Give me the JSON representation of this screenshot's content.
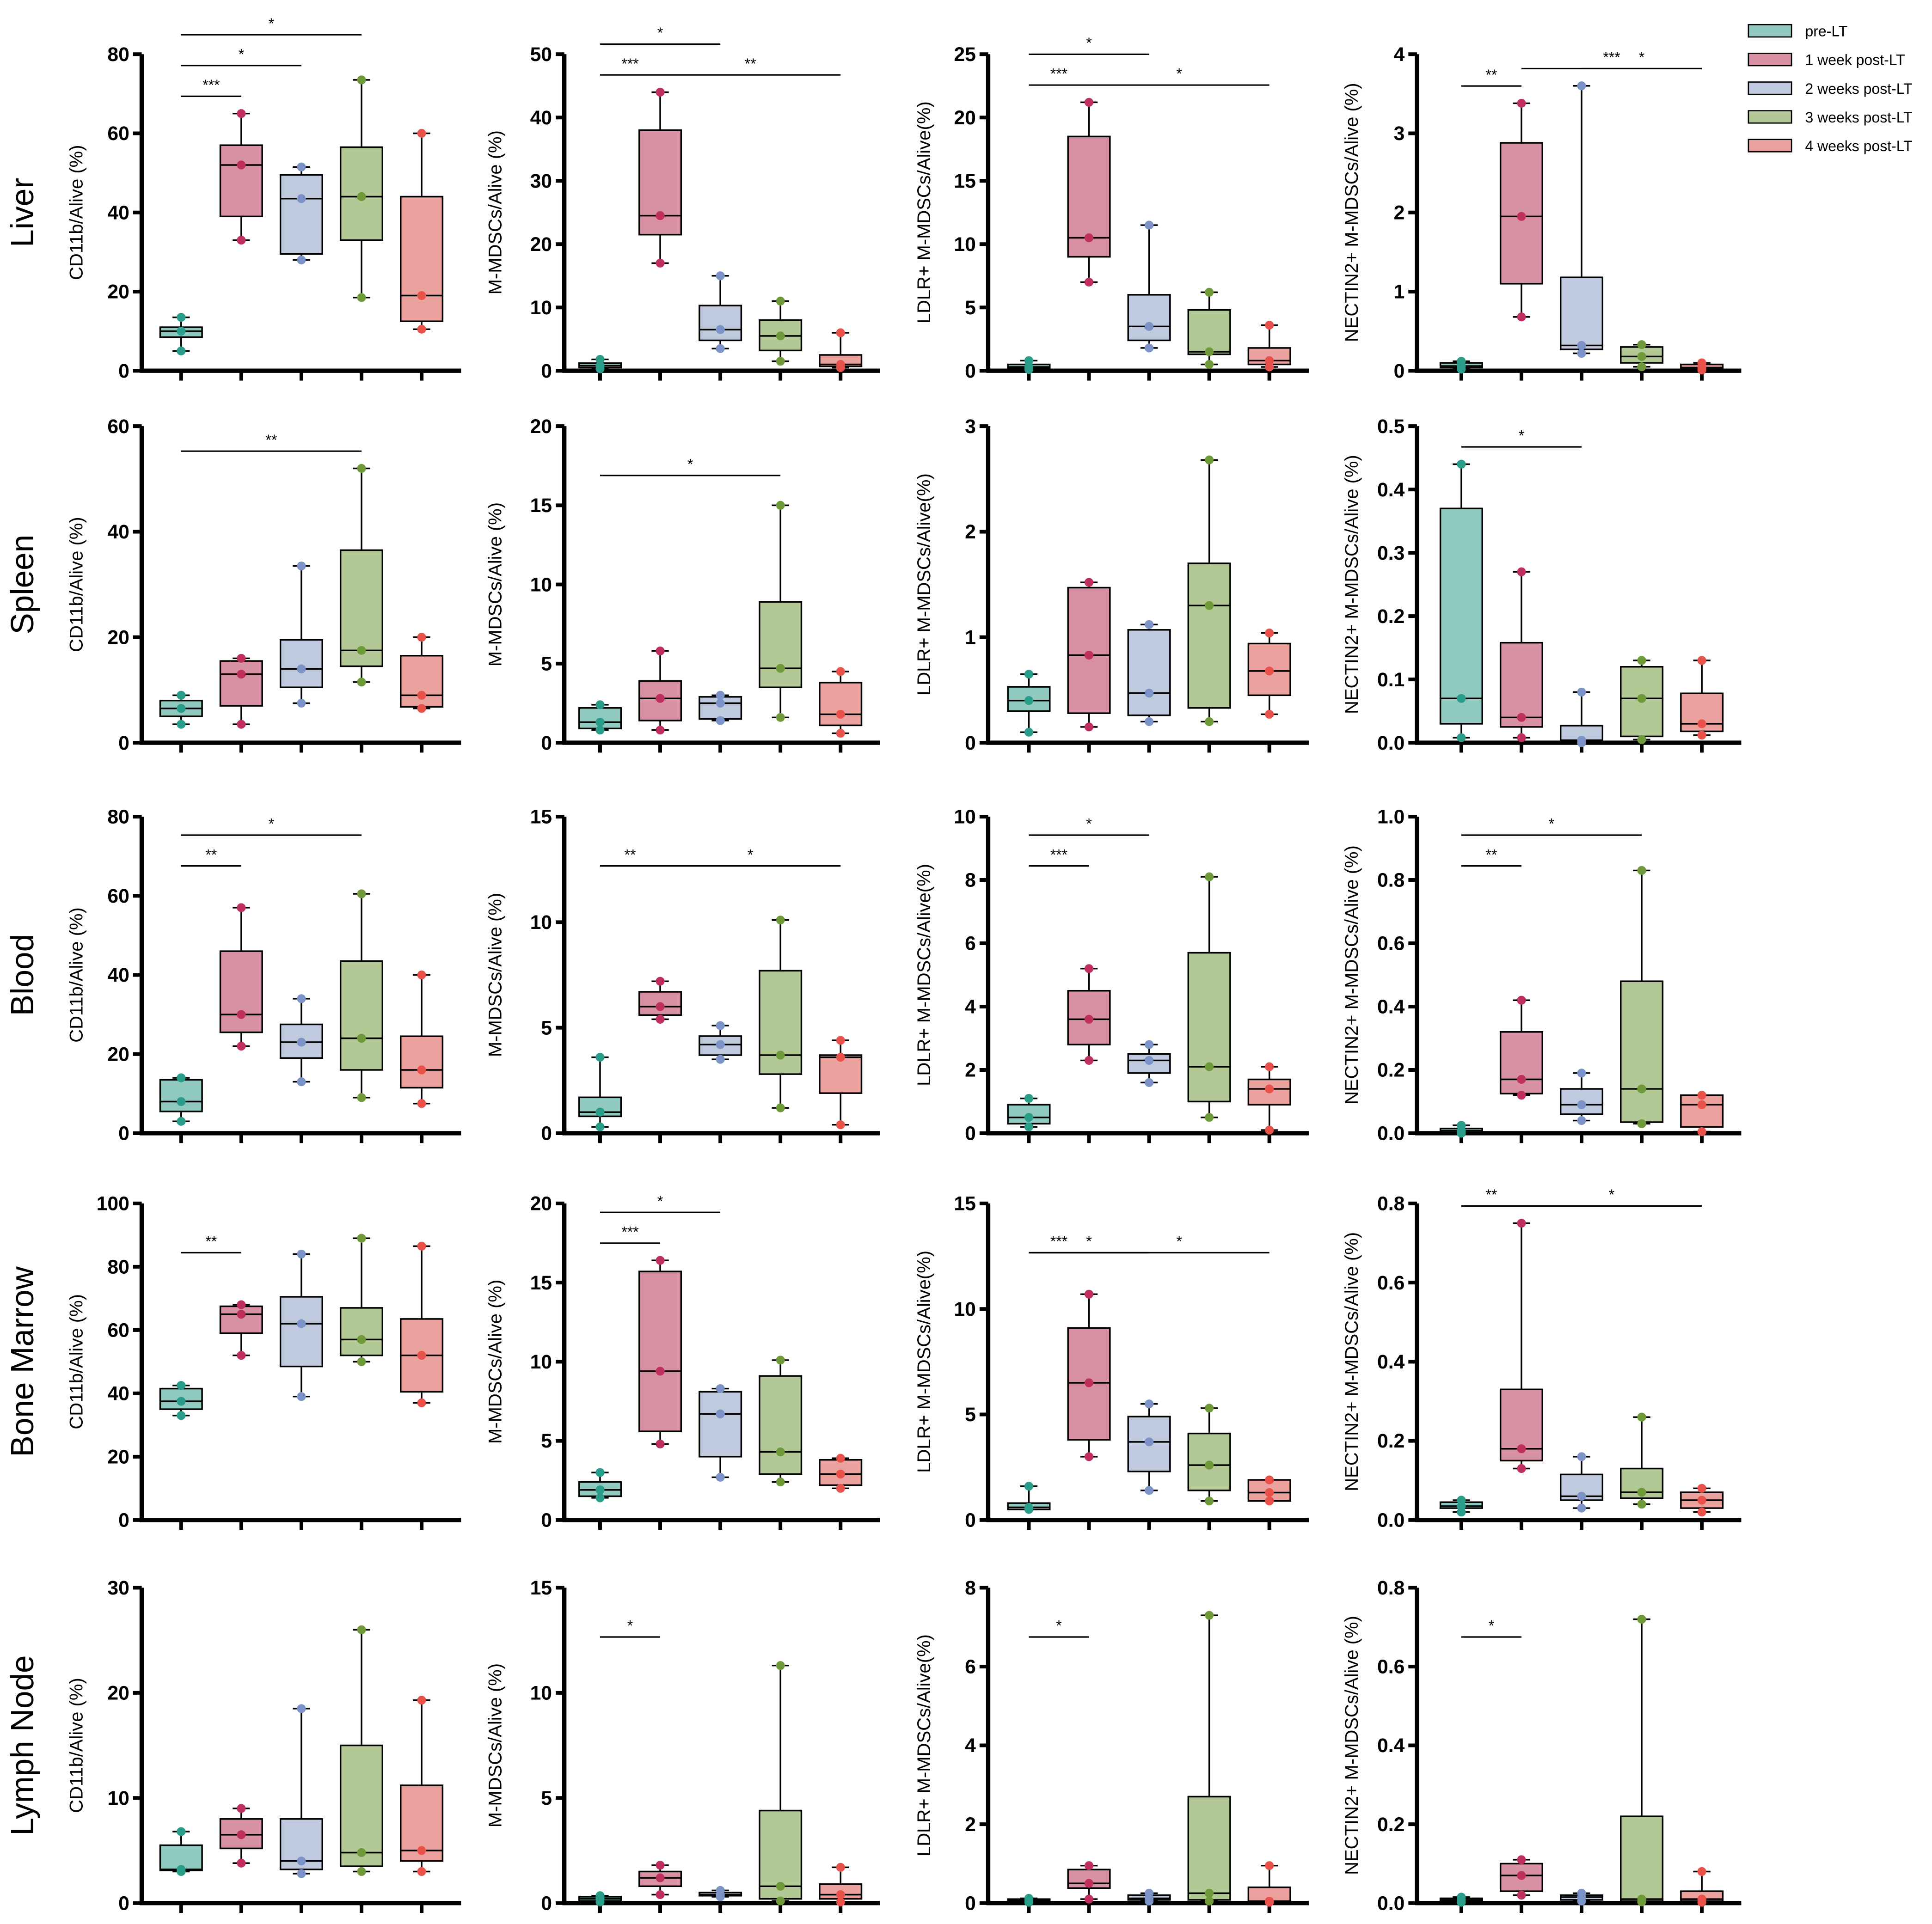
{
  "legend": {
    "groups": [
      "pre-LT",
      "1 week post-LT",
      "2 weeks post-LT",
      "3 weeks post-LT",
      "4 weeks post-LT"
    ],
    "fill_colors": [
      "#8fc9bf",
      "#d890a3",
      "#c0cade",
      "#b2c996",
      "#eba29e"
    ],
    "point_colors": [
      "#2a9d8a",
      "#c0305f",
      "#7b93c6",
      "#6e9a3a",
      "#e8524a"
    ]
  },
  "row_labels": [
    "Liver",
    "Spleen",
    "Blood",
    "Bone Marrow",
    "Lymph Node"
  ],
  "column_ylabels": [
    "CD11b/Alive (%)",
    "M-MDSCs/Alive (%)",
    "LDLR+ M-MDSCs/Alive(%)",
    "NECTIN2+ M-MDSCs/Alive (%)"
  ],
  "chart_data": [
    {
      "type": "box",
      "row": "Liver",
      "ylabel": "CD11b/Alive (%)",
      "ylim": [
        0,
        80
      ],
      "ticks": [
        "0",
        "20",
        "40",
        "60",
        "80"
      ],
      "boxes": [
        [
          5,
          8.5,
          10,
          11,
          13.5
        ],
        [
          33,
          39,
          52,
          57,
          65
        ],
        [
          28,
          29.5,
          43.5,
          49.5,
          51.5
        ],
        [
          18.5,
          33,
          44,
          56.5,
          73.5
        ],
        [
          10.5,
          12.5,
          19,
          44,
          60
        ]
      ],
      "significance": [
        [
          0,
          1,
          "***"
        ],
        [
          0,
          2,
          "*"
        ],
        [
          0,
          3,
          "*"
        ]
      ]
    },
    {
      "type": "box",
      "row": "Liver",
      "ylabel": "M-MDSCs/Alive (%)",
      "ylim": [
        0,
        50
      ],
      "ticks": [
        "0",
        "10",
        "20",
        "30",
        "40",
        "50"
      ],
      "boxes": [
        [
          0.3,
          0.5,
          0.8,
          1.2,
          1.8
        ],
        [
          17,
          21.5,
          24.5,
          38,
          44
        ],
        [
          3.5,
          4.8,
          6.5,
          10.3,
          15
        ],
        [
          1.5,
          3.2,
          5.5,
          8,
          11
        ],
        [
          0.5,
          0.7,
          1,
          2.5,
          6
        ]
      ],
      "significance": [
        [
          0,
          1,
          "***"
        ],
        [
          0,
          2,
          "*"
        ],
        [
          1,
          4,
          "**"
        ]
      ]
    },
    {
      "type": "box",
      "row": "Liver",
      "ylabel": "LDLR+ M-MDSCs/Alive(%)",
      "ylim": [
        0,
        25
      ],
      "ticks": [
        "0",
        "5",
        "10",
        "15",
        "20",
        "25"
      ],
      "boxes": [
        [
          0.1,
          0.2,
          0.3,
          0.5,
          0.8
        ],
        [
          7,
          9,
          10.5,
          18.5,
          21.2
        ],
        [
          1.8,
          2.4,
          3.5,
          6,
          11.5
        ],
        [
          0.5,
          1.3,
          1.5,
          4.8,
          6.2
        ],
        [
          0.3,
          0.5,
          0.8,
          1.8,
          3.6
        ]
      ],
      "significance": [
        [
          0,
          1,
          "***"
        ],
        [
          0,
          2,
          "*"
        ],
        [
          1,
          4,
          "*"
        ]
      ]
    },
    {
      "type": "box",
      "row": "Liver",
      "ylabel": "NECTIN2+ M-MDSCs/Alive (%)",
      "ylim": [
        0,
        4
      ],
      "ticks": [
        "0",
        "1",
        "2",
        "3",
        "4"
      ],
      "boxes": [
        [
          0.02,
          0.04,
          0.06,
          0.1,
          0.12
        ],
        [
          0.68,
          1.1,
          1.95,
          2.88,
          3.38
        ],
        [
          0.22,
          0.27,
          0.32,
          1.18,
          3.6
        ],
        [
          0.05,
          0.1,
          0.18,
          0.3,
          0.33
        ],
        [
          0.01,
          0.02,
          0.04,
          0.08,
          0.1
        ]
      ],
      "significance": [
        [
          0,
          1,
          "**"
        ],
        [
          2,
          4,
          "*"
        ],
        [
          1,
          4,
          "***"
        ]
      ]
    },
    {
      "type": "box",
      "row": "Spleen",
      "ylabel": "CD11b/Alive (%)",
      "ylim": [
        0,
        60
      ],
      "ticks": [
        "0",
        "20",
        "40",
        "60"
      ],
      "boxes": [
        [
          3.5,
          5,
          6.5,
          8,
          9
        ],
        [
          3.5,
          7,
          13,
          15.5,
          16
        ],
        [
          7.5,
          10.5,
          14,
          19.5,
          33.5
        ],
        [
          11.5,
          14.5,
          17.5,
          36.5,
          52
        ],
        [
          6.5,
          6.8,
          9,
          16.5,
          20
        ]
      ],
      "significance": [
        [
          0,
          3,
          "**"
        ]
      ]
    },
    {
      "type": "box",
      "row": "Spleen",
      "ylabel": "M-MDSCs/Alive (%)",
      "ylim": [
        0,
        20
      ],
      "ticks": [
        "0",
        "5",
        "10",
        "15",
        "20"
      ],
      "boxes": [
        [
          0.8,
          0.9,
          1.3,
          2.2,
          2.4
        ],
        [
          0.8,
          1.4,
          2.8,
          3.9,
          5.8
        ],
        [
          1.4,
          1.5,
          2.5,
          2.9,
          3
        ],
        [
          1.6,
          3.5,
          4.7,
          8.9,
          15
        ],
        [
          0.6,
          1.1,
          1.8,
          3.8,
          4.5
        ]
      ],
      "significance": [
        [
          0,
          3,
          "*"
        ]
      ]
    },
    {
      "type": "box",
      "row": "Spleen",
      "ylabel": "LDLR+ M-MDSCs/Alive(%)",
      "ylim": [
        0,
        3
      ],
      "ticks": [
        "0",
        "1",
        "2",
        "3"
      ],
      "boxes": [
        [
          0.1,
          0.3,
          0.4,
          0.53,
          0.65
        ],
        [
          0.15,
          0.28,
          0.83,
          1.47,
          1.52
        ],
        [
          0.2,
          0.26,
          0.47,
          1.07,
          1.12
        ],
        [
          0.2,
          0.33,
          1.3,
          1.7,
          2.68
        ],
        [
          0.27,
          0.45,
          0.68,
          0.94,
          1.04
        ]
      ],
      "significance": []
    },
    {
      "type": "box",
      "row": "Spleen",
      "ylabel": "NECTIN2+ M-MDSCs/Alive (%)",
      "ylim": [
        0,
        0.5
      ],
      "ticks": [
        "0.0",
        "0.1",
        "0.2",
        "0.3",
        "0.4",
        "0.5"
      ],
      "boxes": [
        [
          0.008,
          0.03,
          0.07,
          0.37,
          0.44
        ],
        [
          0.008,
          0.025,
          0.04,
          0.158,
          0.27
        ],
        [
          0,
          0.002,
          0.004,
          0.027,
          0.08
        ],
        [
          0.005,
          0.01,
          0.07,
          0.12,
          0.13
        ],
        [
          0.012,
          0.018,
          0.03,
          0.078,
          0.13
        ]
      ],
      "significance": [
        [
          0,
          2,
          "*"
        ]
      ]
    },
    {
      "type": "box",
      "row": "Blood",
      "ylabel": "CD11b/Alive (%)",
      "ylim": [
        0,
        80
      ],
      "ticks": [
        "0",
        "20",
        "40",
        "60",
        "80"
      ],
      "boxes": [
        [
          3,
          5.5,
          8,
          13.5,
          14
        ],
        [
          22,
          25.5,
          30,
          46,
          57
        ],
        [
          13,
          19,
          23,
          27.5,
          34
        ],
        [
          9,
          16,
          24,
          43.5,
          60.5
        ],
        [
          7.5,
          11.5,
          16,
          24.5,
          40
        ]
      ],
      "significance": [
        [
          0,
          1,
          "**"
        ],
        [
          0,
          3,
          "*"
        ]
      ]
    },
    {
      "type": "box",
      "row": "Blood",
      "ylabel": "M-MDSCs/Alive (%)",
      "ylim": [
        0,
        15
      ],
      "ticks": [
        "0",
        "5",
        "10",
        "15"
      ],
      "boxes": [
        [
          0.3,
          0.8,
          1,
          1.7,
          3.6
        ],
        [
          5.4,
          5.6,
          6,
          6.7,
          7.2
        ],
        [
          3.5,
          3.7,
          4.2,
          4.6,
          5.1
        ],
        [
          1.2,
          2.8,
          3.7,
          7.7,
          10.1
        ],
        [
          0.4,
          1.9,
          3.6,
          3.7,
          4.4
        ]
      ],
      "significance": [
        [
          0,
          1,
          "**"
        ],
        [
          1,
          4,
          "*"
        ]
      ]
    },
    {
      "type": "box",
      "row": "Blood",
      "ylabel": "LDLR+ M-MDSCs/Alive(%)",
      "ylim": [
        0,
        10
      ],
      "ticks": [
        "0",
        "2",
        "4",
        "6",
        "8",
        "10"
      ],
      "boxes": [
        [
          0.2,
          0.3,
          0.5,
          0.9,
          1.1
        ],
        [
          2.3,
          2.8,
          3.6,
          4.5,
          5.2
        ],
        [
          1.6,
          1.9,
          2.3,
          2.5,
          2.8
        ],
        [
          0.5,
          1,
          2.1,
          5.7,
          8.1
        ],
        [
          0.1,
          0.9,
          1.4,
          1.7,
          2.1
        ]
      ],
      "significance": [
        [
          0,
          1,
          "***"
        ],
        [
          0,
          2,
          "*"
        ]
      ]
    },
    {
      "type": "box",
      "row": "Blood",
      "ylabel": "NECTIN2+ M-MDSCs/Alive (%)",
      "ylim": [
        0,
        1
      ],
      "ticks": [
        "0.0",
        "0.2",
        "0.4",
        "0.6",
        "0.8",
        "1.0"
      ],
      "boxes": [
        [
          0,
          0.003,
          0.008,
          0.015,
          0.025
        ],
        [
          0.12,
          0.125,
          0.17,
          0.32,
          0.42
        ],
        [
          0.04,
          0.06,
          0.09,
          0.14,
          0.19
        ],
        [
          0.03,
          0.035,
          0.14,
          0.48,
          0.83
        ],
        [
          0.005,
          0.02,
          0.09,
          0.12,
          0.12
        ]
      ],
      "significance": [
        [
          0,
          1,
          "**"
        ],
        [
          0,
          3,
          "*"
        ]
      ]
    },
    {
      "type": "box",
      "row": "Bone Marrow",
      "ylabel": "CD11b/Alive (%)",
      "ylim": [
        0,
        100
      ],
      "ticks": [
        "0",
        "20",
        "40",
        "60",
        "80",
        "100"
      ],
      "boxes": [
        [
          33,
          35,
          37.5,
          41.5,
          42.5
        ],
        [
          52,
          59,
          65,
          67.5,
          68
        ],
        [
          39,
          48.5,
          62,
          70.5,
          84
        ],
        [
          50,
          52,
          57,
          67,
          89
        ],
        [
          37,
          40.5,
          52,
          63.5,
          86.5
        ]
      ],
      "significance": [
        [
          0,
          1,
          "**"
        ]
      ]
    },
    {
      "type": "box",
      "row": "Bone Marrow",
      "ylabel": "M-MDSCs/Alive (%)",
      "ylim": [
        0,
        20
      ],
      "ticks": [
        "0",
        "5",
        "10",
        "15",
        "20"
      ],
      "boxes": [
        [
          1.4,
          1.5,
          1.9,
          2.4,
          3
        ],
        [
          4.8,
          5.6,
          9.4,
          15.7,
          16.4
        ],
        [
          2.7,
          4,
          6.7,
          8.1,
          8.3
        ],
        [
          2.4,
          2.9,
          4.3,
          9.1,
          10.1
        ],
        [
          2,
          2.2,
          2.9,
          3.8,
          3.9
        ]
      ],
      "significance": [
        [
          0,
          1,
          "***"
        ],
        [
          0,
          2,
          "*"
        ]
      ]
    },
    {
      "type": "box",
      "row": "Bone Marrow",
      "ylabel": "LDLR+ M-MDSCs/Alive(%)",
      "ylim": [
        0,
        15
      ],
      "ticks": [
        "0",
        "5",
        "10",
        "15"
      ],
      "boxes": [
        [
          0.5,
          0.5,
          0.6,
          0.8,
          1.6
        ],
        [
          3,
          3.8,
          6.5,
          9.1,
          10.7
        ],
        [
          1.4,
          2.3,
          3.7,
          4.9,
          5.5
        ],
        [
          0.9,
          1.4,
          2.6,
          4.1,
          5.3
        ],
        [
          0.9,
          0.9,
          1.3,
          1.9,
          1.9
        ]
      ],
      "significance": [
        [
          0,
          1,
          "***"
        ],
        [
          1,
          4,
          "*"
        ],
        [
          0,
          2,
          "*"
        ]
      ]
    },
    {
      "type": "box",
      "row": "Bone Marrow",
      "ylabel": "NECTIN2+ M-MDSCs/Alive (%)",
      "ylim": [
        0,
        0.8
      ],
      "ticks": [
        "0.0",
        "0.2",
        "0.4",
        "0.6",
        "0.8"
      ],
      "boxes": [
        [
          0.02,
          0.03,
          0.035,
          0.045,
          0.05
        ],
        [
          0.13,
          0.15,
          0.18,
          0.33,
          0.75
        ],
        [
          0.03,
          0.05,
          0.06,
          0.115,
          0.16
        ],
        [
          0.04,
          0.055,
          0.07,
          0.13,
          0.26
        ],
        [
          0.02,
          0.03,
          0.05,
          0.07,
          0.08
        ]
      ],
      "significance": [
        [
          0,
          1,
          "**"
        ],
        [
          1,
          4,
          "*"
        ]
      ]
    },
    {
      "type": "box",
      "row": "Lymph Node",
      "ylabel": "CD11b/Alive (%)",
      "ylim": [
        0,
        30
      ],
      "ticks": [
        "0",
        "10",
        "20",
        "30"
      ],
      "boxes": [
        [
          3,
          3.1,
          3.2,
          5.5,
          6.8
        ],
        [
          3.8,
          5.2,
          6.5,
          8,
          9
        ],
        [
          2.8,
          3.2,
          4,
          8,
          18.5
        ],
        [
          3,
          3.5,
          4.8,
          15,
          26
        ],
        [
          3,
          4,
          5,
          11.2,
          19.3
        ]
      ],
      "significance": []
    },
    {
      "type": "box",
      "row": "Lymph Node",
      "ylabel": "M-MDSCs/Alive (%)",
      "ylim": [
        0,
        15
      ],
      "ticks": [
        "0",
        "5",
        "10",
        "15"
      ],
      "boxes": [
        [
          0.05,
          0.1,
          0.2,
          0.3,
          0.35
        ],
        [
          0.4,
          0.8,
          1.2,
          1.5,
          1.8
        ],
        [
          0.3,
          0.35,
          0.4,
          0.5,
          0.6
        ],
        [
          0.1,
          0.2,
          0.8,
          4.4,
          11.3
        ],
        [
          0.05,
          0.2,
          0.4,
          0.9,
          1.7
        ]
      ],
      "significance": [
        [
          0,
          1,
          "*"
        ]
      ]
    },
    {
      "type": "box",
      "row": "Lymph Node",
      "ylabel": "LDLR+ M-MDSCs/Alive(%)",
      "ylim": [
        0,
        8
      ],
      "ticks": [
        "0",
        "2",
        "4",
        "6",
        "8"
      ],
      "boxes": [
        [
          0.02,
          0.05,
          0.08,
          0.1,
          0.12
        ],
        [
          0.1,
          0.38,
          0.5,
          0.85,
          0.95
        ],
        [
          0.05,
          0.08,
          0.12,
          0.2,
          0.25
        ],
        [
          0.05,
          0.08,
          0.25,
          2.7,
          7.3
        ],
        [
          0.02,
          0.03,
          0.05,
          0.4,
          0.95
        ]
      ],
      "significance": [
        [
          0,
          1,
          "*"
        ]
      ]
    },
    {
      "type": "box",
      "row": "Lymph Node",
      "ylabel": "NECTIN2+ M-MDSCs/Alive (%)",
      "ylim": [
        0,
        0.8
      ],
      "ticks": [
        "0.0",
        "0.2",
        "0.4",
        "0.6",
        "0.8"
      ],
      "boxes": [
        [
          0.002,
          0.004,
          0.008,
          0.012,
          0.015
        ],
        [
          0.02,
          0.03,
          0.07,
          0.1,
          0.11
        ],
        [
          0.005,
          0.008,
          0.015,
          0.02,
          0.025
        ],
        [
          0.003,
          0.005,
          0.01,
          0.22,
          0.72
        ],
        [
          0.002,
          0.005,
          0.01,
          0.03,
          0.08
        ]
      ],
      "significance": [
        [
          0,
          1,
          "*"
        ]
      ]
    }
  ]
}
